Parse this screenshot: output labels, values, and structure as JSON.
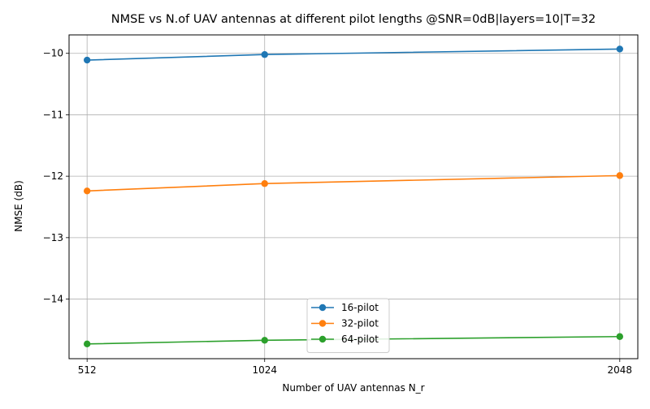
{
  "chart_data": {
    "type": "line",
    "title": "NMSE vs N.of UAV antennas at different pilot lengths @SNR=0dB|layers=10|T=32",
    "xlabel": "Number of UAV antennas N_r",
    "ylabel": "NMSE (dB)",
    "x": [
      512,
      1024,
      2048
    ],
    "xticks": [
      "512",
      "1024",
      "2048"
    ],
    "xlim": [
      460,
      2100
    ],
    "ylim": [
      -14.97,
      -9.7
    ],
    "yticks": [
      -10,
      -11,
      -12,
      -13,
      -14
    ],
    "ytick_labels": [
      "−10",
      "−11",
      "−12",
      "−13",
      "−14"
    ],
    "grid": true,
    "legend_position": "lower center",
    "series": [
      {
        "name": "16-pilot",
        "values": [
          -10.11,
          -10.02,
          -9.93
        ],
        "color": "#1f77b4"
      },
      {
        "name": "32-pilot",
        "values": [
          -12.24,
          -12.12,
          -11.99
        ],
        "color": "#ff7f0e"
      },
      {
        "name": "64-pilot",
        "values": [
          -14.73,
          -14.67,
          -14.61
        ],
        "color": "#2ca02c"
      }
    ]
  }
}
